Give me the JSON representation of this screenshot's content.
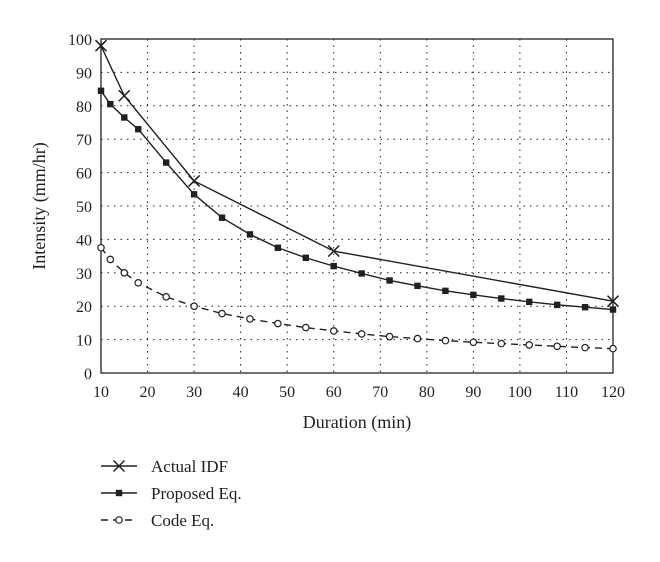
{
  "chart_data": {
    "type": "line",
    "title": "",
    "xlabel": "Duration (min)",
    "ylabel": "Intensity (mm/hr)",
    "xlim": [
      10,
      120
    ],
    "ylim": [
      0,
      100
    ],
    "xticks": [
      10,
      20,
      30,
      40,
      50,
      60,
      70,
      80,
      90,
      100,
      110,
      120
    ],
    "yticks": [
      0,
      10,
      20,
      30,
      40,
      50,
      60,
      70,
      80,
      90,
      100
    ],
    "grid": "dotted",
    "legend_position": "bottom-left",
    "series": [
      {
        "name": "Actual IDF",
        "marker": "x",
        "line_style": "solid",
        "x": [
          10,
          15,
          30,
          60,
          120
        ],
        "y": [
          98,
          83,
          57.5,
          36.5,
          21.5
        ]
      },
      {
        "name": "Proposed Eq.",
        "marker": "filled-square",
        "line_style": "solid",
        "x": [
          10,
          12,
          15,
          18,
          24,
          30,
          36,
          42,
          48,
          54,
          60,
          66,
          72,
          78,
          84,
          90,
          96,
          102,
          108,
          114,
          120
        ],
        "y": [
          84.5,
          80.5,
          76.5,
          73,
          63,
          53.5,
          46.5,
          41.5,
          37.5,
          34.5,
          32,
          29.8,
          27.7,
          26.1,
          24.6,
          23.4,
          22.3,
          21.3,
          20.4,
          19.7,
          19
        ]
      },
      {
        "name": "Code Eq.",
        "marker": "open-circle",
        "line_style": "dashed",
        "x": [
          10,
          12,
          15,
          18,
          24,
          30,
          36,
          42,
          48,
          54,
          60,
          66,
          72,
          78,
          84,
          90,
          96,
          102,
          108,
          114,
          120
        ],
        "y": [
          37.5,
          34,
          30,
          27,
          22.8,
          20,
          17.8,
          16.2,
          14.8,
          13.6,
          12.6,
          11.7,
          10.9,
          10.3,
          9.7,
          9.2,
          8.8,
          8.4,
          8.0,
          7.6,
          7.3
        ]
      }
    ]
  }
}
